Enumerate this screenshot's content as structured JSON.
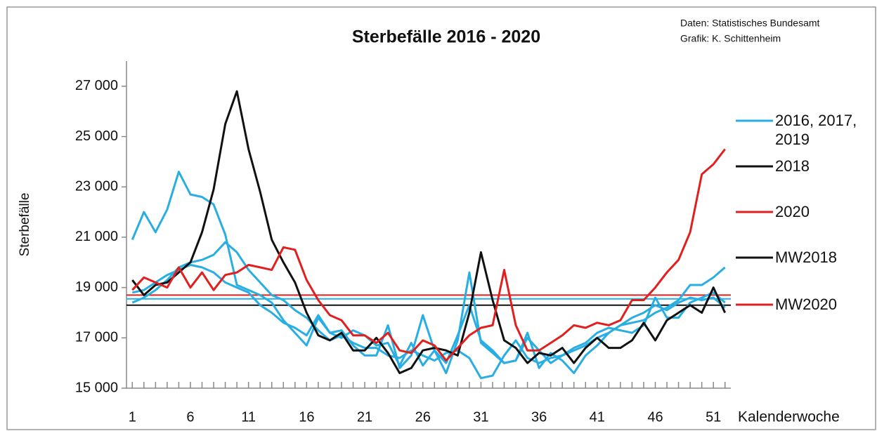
{
  "chart_data": {
    "type": "line",
    "title": "Sterbefälle 2016 - 2020",
    "source": [
      "Daten: Statistisches Bundesamt",
      "Grafik: K. Schittenheim"
    ],
    "y_label": "Sterbefälle",
    "x_label": "Kalenderwoche",
    "x": [
      1,
      2,
      3,
      4,
      5,
      6,
      7,
      8,
      9,
      10,
      11,
      12,
      13,
      14,
      15,
      16,
      17,
      18,
      19,
      20,
      21,
      22,
      23,
      24,
      25,
      26,
      27,
      28,
      29,
      30,
      31,
      32,
      33,
      34,
      35,
      36,
      37,
      38,
      39,
      40,
      41,
      42,
      43,
      44,
      45,
      46,
      47,
      48,
      49,
      50,
      51,
      52
    ],
    "xlim": [
      0.5,
      52.5
    ],
    "xticks": [
      1,
      6,
      11,
      16,
      21,
      26,
      31,
      36,
      41,
      46,
      51
    ],
    "ylim": [
      15000,
      28000
    ],
    "yticks": [
      {
        "value": 15000,
        "label": "15 000"
      },
      {
        "value": 17000,
        "label": "17 000"
      },
      {
        "value": 19000,
        "label": "19 000"
      },
      {
        "value": 21000,
        "label": "21 000"
      },
      {
        "value": 23000,
        "label": "23 000"
      },
      {
        "value": 25000,
        "label": "25 000"
      },
      {
        "value": 27000,
        "label": "27 000"
      }
    ],
    "series": [
      {
        "name": "2016, 2017, 2019",
        "color": "#29aee3",
        "values": [
          [
            20900,
            22000,
            21200,
            22100,
            23600,
            22700,
            22600,
            22300,
            21100,
            19100,
            18900,
            18700,
            18400,
            17700,
            17200,
            16700,
            17800,
            17200,
            17300,
            16700,
            16300,
            16300,
            17500,
            15800,
            16300,
            17900,
            16500,
            15600,
            16900,
            19600,
            16800,
            16400,
            16000,
            16100,
            17200,
            15800,
            16400,
            16100,
            15600,
            16300,
            16700,
            17200,
            17500,
            17600,
            17700,
            18000,
            18200,
            18500,
            19100,
            19100,
            19400,
            19800
          ],
          [
            18400,
            18600,
            18900,
            19300,
            19800,
            20000,
            20100,
            20300,
            20800,
            20400,
            19700,
            19200,
            18700,
            18500,
            18100,
            17800,
            17300,
            16900,
            17100,
            16800,
            16600,
            16600,
            16300,
            16200,
            16500,
            16300,
            16100,
            16400,
            16500,
            16200,
            15400,
            15500,
            16300,
            16900,
            16200,
            16000,
            16200,
            16300,
            16500,
            16700,
            17000,
            17200,
            17500,
            17800,
            18000,
            18300,
            18100,
            18400,
            18600,
            18500,
            18600,
            18200
          ],
          [
            18800,
            18900,
            19200,
            19500,
            19700,
            19900,
            19800,
            19600,
            19200,
            19000,
            18800,
            18300,
            18000,
            17600,
            17400,
            17100,
            17900,
            17200,
            17000,
            17300,
            17100,
            16700,
            16800,
            15900,
            16800,
            15900,
            16500,
            16000,
            17100,
            18300,
            16900,
            16500,
            16000,
            16100,
            17000,
            16500,
            16000,
            16300,
            16600,
            16800,
            17200,
            17400,
            17300,
            17200,
            17500,
            18600,
            17800,
            17800,
            18400,
            18600,
            18800,
            18400
          ]
        ]
      },
      {
        "name": "2018",
        "color": "#111111",
        "values": [
          19300,
          18700,
          19100,
          19200,
          19600,
          20000,
          21200,
          22900,
          25500,
          26800,
          24500,
          22800,
          20900,
          20000,
          19200,
          18000,
          17100,
          16900,
          17200,
          16500,
          16500,
          17000,
          16400,
          15600,
          15800,
          16500,
          16600,
          16500,
          16300,
          18000,
          20400,
          18500,
          16900,
          16600,
          16000,
          16400,
          16300,
          16600,
          16000,
          16600,
          17000,
          16600,
          16600,
          16900,
          17600,
          16900,
          17700,
          18000,
          18300,
          18000,
          19000,
          18000
        ]
      },
      {
        "name": "2020",
        "color": "#e0201f",
        "values": [
          18900,
          19400,
          19200,
          19000,
          19800,
          19000,
          19600,
          18900,
          19500,
          19600,
          19900,
          19800,
          19700,
          20600,
          20500,
          19300,
          18500,
          17900,
          17700,
          17100,
          17100,
          16800,
          17200,
          16500,
          16400,
          16900,
          16700,
          16100,
          16600,
          17100,
          17400,
          17500,
          19700,
          17500,
          16500,
          16500,
          16800,
          17100,
          17500,
          17400,
          17600,
          17500,
          17700,
          18500,
          18500,
          19000,
          19600,
          20100,
          21200,
          23500,
          23900,
          24500
        ]
      }
    ],
    "mean_lines": [
      {
        "name": "MW2018",
        "color": "#111111",
        "value": 18300
      },
      {
        "name": "MW2020",
        "color": "#e0201f",
        "value": 18700
      },
      {
        "color": "#29aee3",
        "value": 18550
      }
    ]
  }
}
